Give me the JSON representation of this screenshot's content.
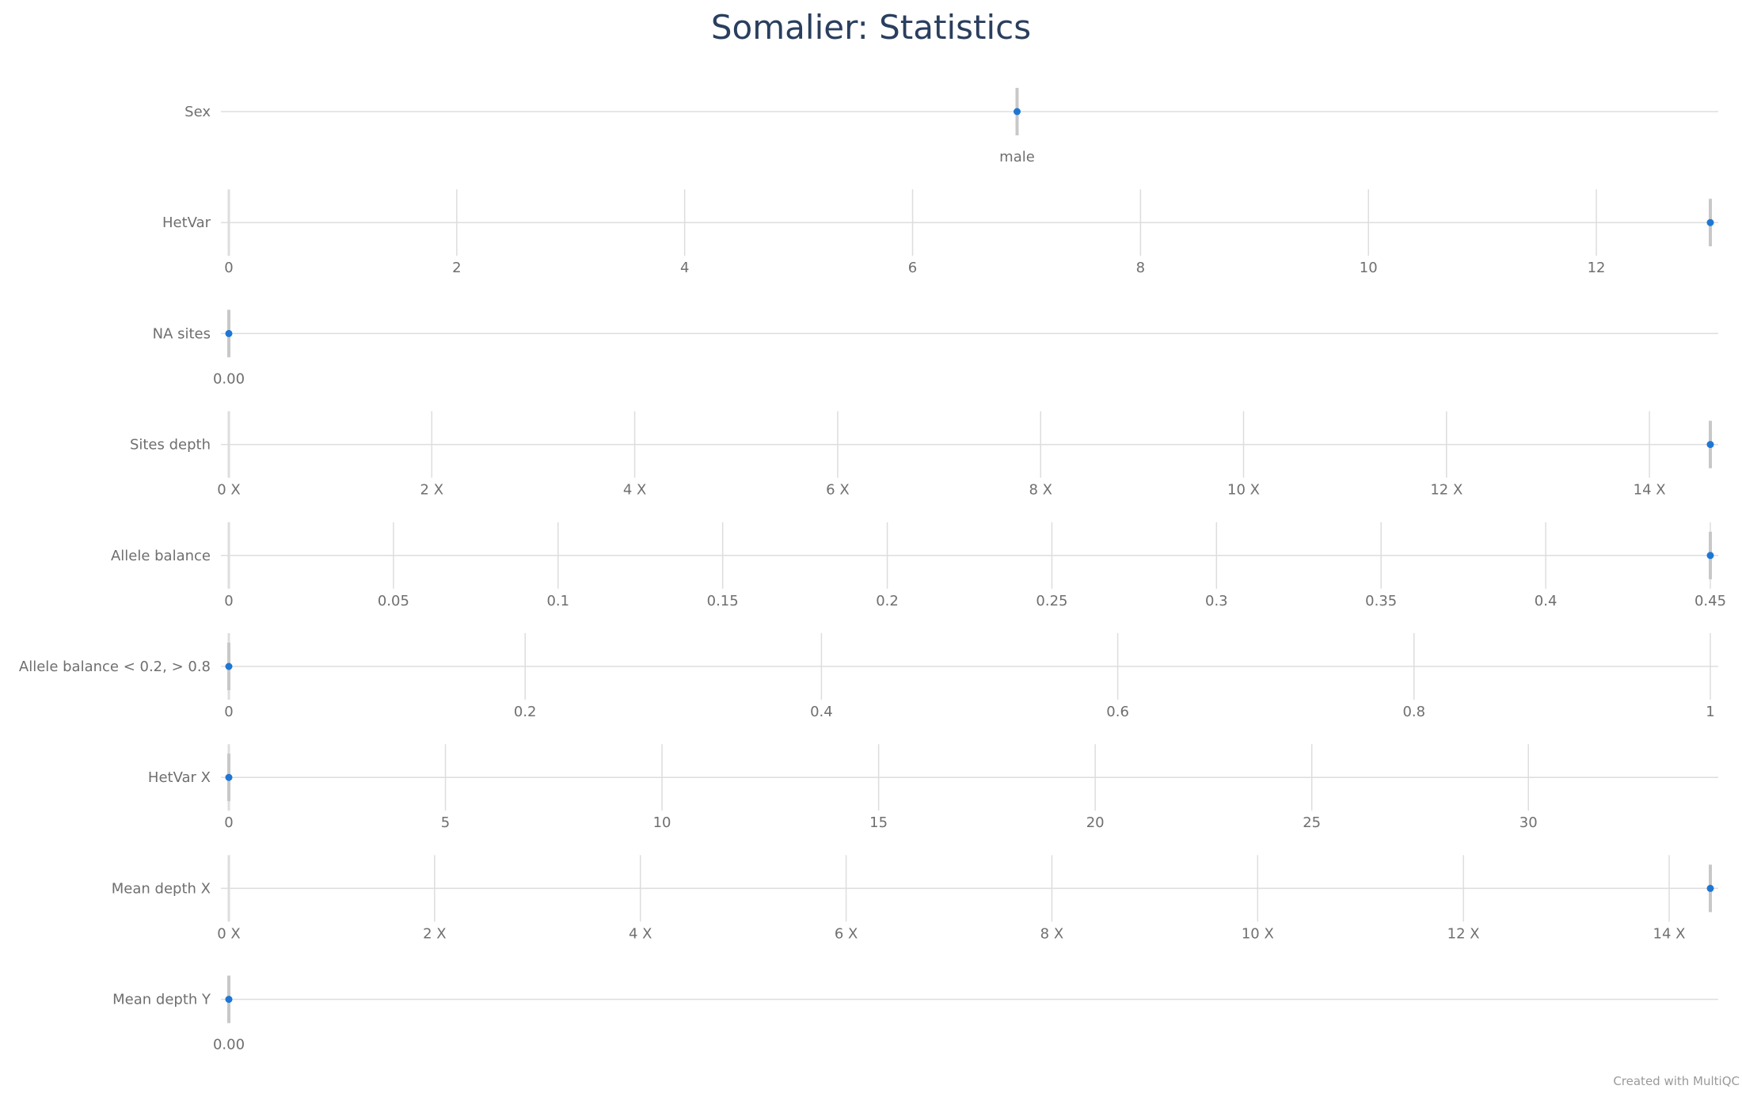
{
  "title": "Somalier: Statistics",
  "credit": "Created with MultiQC",
  "colors": {
    "point": "#1f77d4",
    "gridline": "#dddddd",
    "band": "#c8c8c8",
    "title": "#2a3f5f",
    "label": "#6f6f6f"
  },
  "chart_data": {
    "type": "scatter",
    "layout": "violin-strip",
    "title": "Somalier: Statistics",
    "rows": [
      {
        "name": "Sex",
        "kind": "categorical",
        "categories": [
          "male"
        ],
        "ticks": [
          "male"
        ],
        "tick_labels": [
          "male"
        ],
        "value": "male"
      },
      {
        "name": "HetVar",
        "range": [
          0,
          13
        ],
        "ticks": [
          0,
          2,
          4,
          6,
          8,
          10,
          12
        ],
        "tick_labels": [
          "0",
          "2",
          "4",
          "6",
          "8",
          "10",
          "12"
        ],
        "value": 13
      },
      {
        "name": "NA sites",
        "range": [
          0,
          1
        ],
        "ticks": [
          0
        ],
        "tick_labels": [
          "0.00"
        ],
        "value": 0,
        "no_grid": true
      },
      {
        "name": "Sites depth",
        "range": [
          0,
          14.6
        ],
        "ticks": [
          0,
          2,
          4,
          6,
          8,
          10,
          12,
          14
        ],
        "tick_labels": [
          "0 X",
          "2 X",
          "4 X",
          "6 X",
          "8 X",
          "10 X",
          "12 X",
          "14 X"
        ],
        "value": 14.6
      },
      {
        "name": "Allele balance",
        "range": [
          0,
          0.45
        ],
        "ticks": [
          0,
          0.05,
          0.1,
          0.15,
          0.2,
          0.25,
          0.3,
          0.35,
          0.4,
          0.45
        ],
        "tick_labels": [
          "0",
          "0.05",
          "0.1",
          "0.15",
          "0.2",
          "0.25",
          "0.3",
          "0.35",
          "0.4",
          "0.45"
        ],
        "value": 0.45
      },
      {
        "name": "Allele balance < 0.2, > 0.8",
        "range": [
          0,
          1
        ],
        "ticks": [
          0,
          0.2,
          0.4,
          0.6,
          0.8,
          1
        ],
        "tick_labels": [
          "0",
          "0.2",
          "0.4",
          "0.6",
          "0.8",
          "1"
        ],
        "value": 0
      },
      {
        "name": "HetVar X",
        "range": [
          0,
          34.2
        ],
        "ticks": [
          0,
          5,
          10,
          15,
          20,
          25,
          30
        ],
        "tick_labels": [
          "0",
          "5",
          "10",
          "15",
          "20",
          "25",
          "30"
        ],
        "value": 0
      },
      {
        "name": "Mean depth X",
        "range": [
          0,
          14.4
        ],
        "ticks": [
          0,
          2,
          4,
          6,
          8,
          10,
          12,
          14
        ],
        "tick_labels": [
          "0 X",
          "2 X",
          "4 X",
          "6 X",
          "8 X",
          "10 X",
          "12 X",
          "14 X"
        ],
        "value": 14.4
      },
      {
        "name": "Mean depth Y",
        "range": [
          0,
          1
        ],
        "ticks": [
          0
        ],
        "tick_labels": [
          "0.00"
        ],
        "value": 0,
        "no_grid": true
      }
    ]
  }
}
